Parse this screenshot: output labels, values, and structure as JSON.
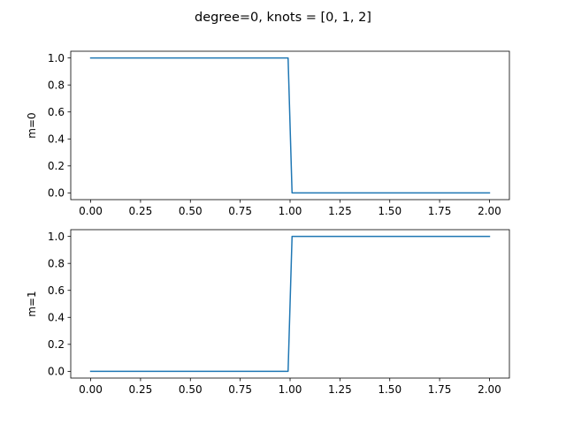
{
  "figure": {
    "title": "degree=0, knots = [0, 1, 2]"
  },
  "chart_data": [
    {
      "type": "line",
      "ylabel": "m=0",
      "xlabel": "",
      "xlim": [
        -0.1,
        2.1
      ],
      "ylim": [
        -0.05,
        1.05
      ],
      "xticks": [
        0.0,
        0.25,
        0.5,
        0.75,
        1.0,
        1.25,
        1.5,
        1.75,
        2.0
      ],
      "xtick_labels": [
        "0.00",
        "0.25",
        "0.50",
        "0.75",
        "1.00",
        "1.25",
        "1.50",
        "1.75",
        "2.00"
      ],
      "yticks": [
        0.0,
        0.2,
        0.4,
        0.6,
        0.8,
        1.0
      ],
      "ytick_labels": [
        "0.0",
        "0.2",
        "0.4",
        "0.6",
        "0.8",
        "1.0"
      ],
      "grid": false,
      "series": [
        {
          "color": "#1f77b4",
          "x": [
            0.0,
            0.99,
            1.01,
            2.0
          ],
          "y": [
            1.0,
            1.0,
            0.0,
            0.0
          ]
        }
      ]
    },
    {
      "type": "line",
      "ylabel": "m=1",
      "xlabel": "",
      "xlim": [
        -0.1,
        2.1
      ],
      "ylim": [
        -0.05,
        1.05
      ],
      "xticks": [
        0.0,
        0.25,
        0.5,
        0.75,
        1.0,
        1.25,
        1.5,
        1.75,
        2.0
      ],
      "xtick_labels": [
        "0.00",
        "0.25",
        "0.50",
        "0.75",
        "1.00",
        "1.25",
        "1.50",
        "1.75",
        "2.00"
      ],
      "yticks": [
        0.0,
        0.2,
        0.4,
        0.6,
        0.8,
        1.0
      ],
      "ytick_labels": [
        "0.0",
        "0.2",
        "0.4",
        "0.6",
        "0.8",
        "1.0"
      ],
      "grid": false,
      "series": [
        {
          "color": "#1f77b4",
          "x": [
            0.0,
            0.99,
            1.01,
            2.0
          ],
          "y": [
            0.0,
            0.0,
            1.0,
            1.0
          ]
        }
      ]
    }
  ]
}
